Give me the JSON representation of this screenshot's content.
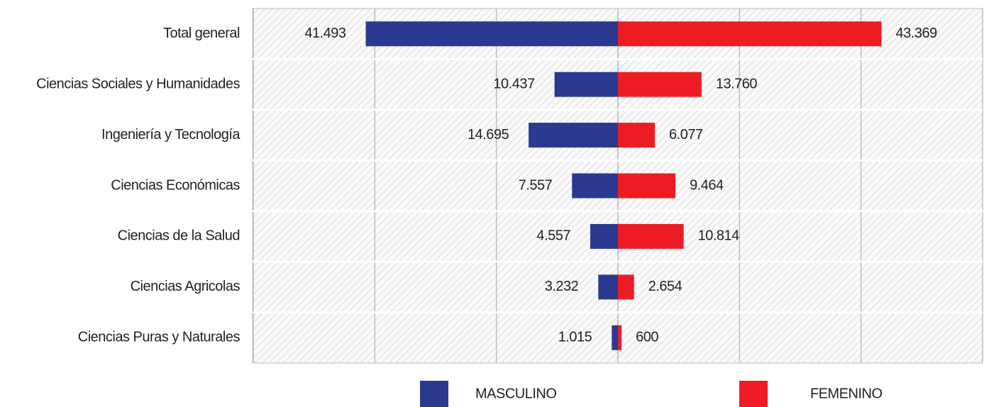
{
  "chart_data": {
    "type": "butterfly",
    "categories": [
      "Total general",
      "Ciencias Sociales y Humanidades",
      "Ingeniería y Tecnología",
      "Ciencias Económicas",
      "Ciencias de la Salud",
      "Ciencias Agricolas",
      "Ciencias Puras y Naturales"
    ],
    "series": [
      {
        "name": "MASCULINO",
        "color": "#2b3990",
        "side": "left",
        "values": [
          41493,
          10437,
          14695,
          7557,
          4557,
          3232,
          1015
        ],
        "value_labels": [
          "41.493",
          "10.437",
          "14.695",
          "7.557",
          "4.557",
          "3.232",
          "1.015"
        ]
      },
      {
        "name": "FEMENINO",
        "color": "#ed1c24",
        "side": "right",
        "values": [
          43369,
          13760,
          6077,
          9464,
          10814,
          2654,
          600
        ],
        "value_labels": [
          "43.369",
          "13.760",
          "6.077",
          "9.464",
          "10.814",
          "2.654",
          "600"
        ]
      }
    ],
    "xlim": [
      0,
      60000
    ],
    "xticks": [
      0,
      20000,
      40000,
      60000
    ],
    "grid": true
  }
}
